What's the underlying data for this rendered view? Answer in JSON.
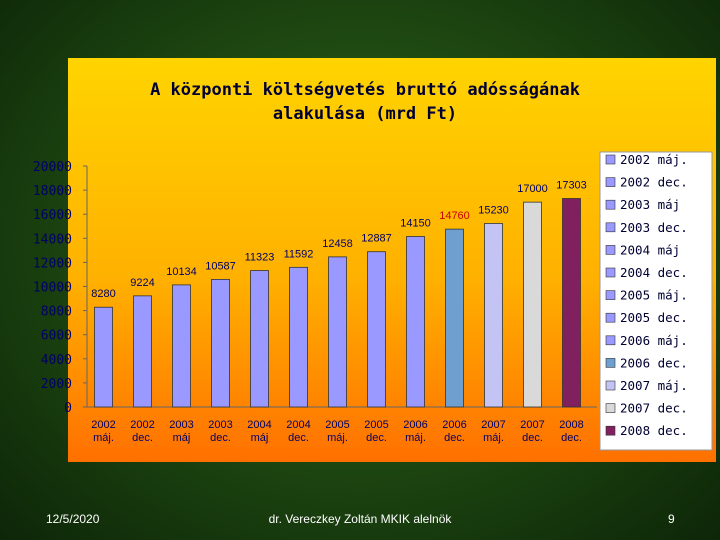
{
  "chart_data": {
    "type": "bar",
    "title": "A központi költségvetés bruttó adósságának alakulása (mrd Ft)",
    "categories": [
      "2002 máj.",
      "2002 dec.",
      "2003 máj",
      "2003 dec.",
      "2004 máj",
      "2004 dec.",
      "2005 máj.",
      "2005 dec.",
      "2006 máj.",
      "2006 dec.",
      "2007 máj.",
      "2007 dec.",
      "2008 dec."
    ],
    "values": [
      8280,
      9224,
      10134,
      10587,
      11323,
      11592,
      12458,
      12887,
      14150,
      14760,
      15230,
      17000,
      17303
    ],
    "colors": [
      "#9999ff",
      "#9999ff",
      "#9999ff",
      "#9999ff",
      "#9999ff",
      "#9999ff",
      "#9999ff",
      "#9999ff",
      "#9999ff",
      "#6f9fcf",
      "#c4c4f4",
      "#d9d9d9",
      "#80205f"
    ],
    "label_colors": [
      "#000066",
      "#000066",
      "#000066",
      "#000066",
      "#000066",
      "#000066",
      "#000066",
      "#000066",
      "#000066",
      "#cc0000",
      "#000066",
      "#000066",
      "#000066"
    ],
    "ylim": [
      0,
      20000
    ],
    "yticks": [
      0,
      2000,
      4000,
      6000,
      8000,
      10000,
      12000,
      14000,
      16000,
      18000,
      20000
    ],
    "grid": false,
    "legend": "right"
  },
  "footer": {
    "date": "12/5/2020",
    "author": "dr. Vereczkey Zoltán MKIK alelnök",
    "page": "9"
  }
}
